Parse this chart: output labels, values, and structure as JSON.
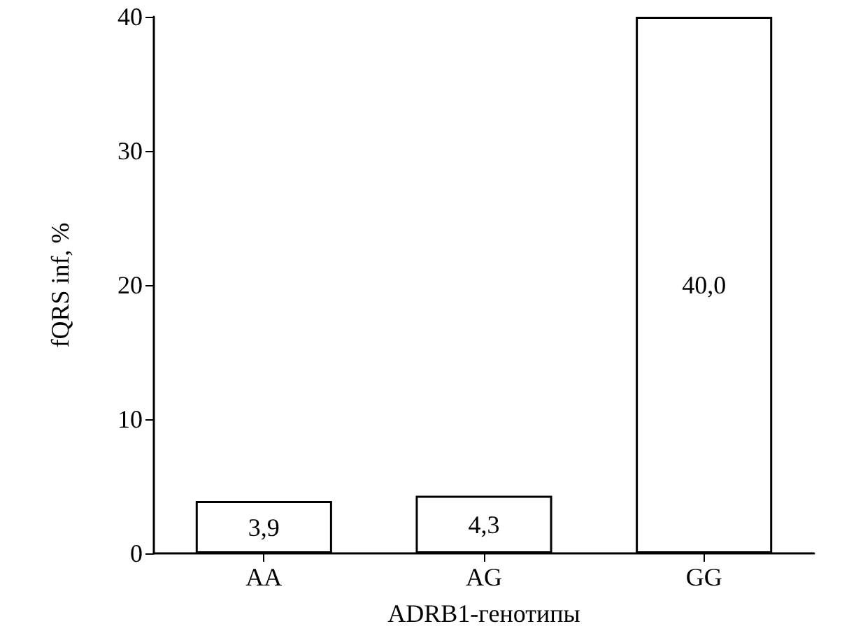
{
  "chart_data": {
    "type": "bar",
    "xlabel": "ADRB1-генотипы",
    "ylabel": "fQRS inf, %",
    "categories": [
      "AA",
      "AG",
      "GG"
    ],
    "values": [
      3.9,
      4.3,
      40.0
    ],
    "value_labels": [
      "3,9",
      "4,3",
      "40,0"
    ],
    "color": "#ffffff",
    "ylim": [
      0,
      40
    ],
    "yticks": [
      0,
      10,
      20,
      30,
      40
    ],
    "grid": false
  }
}
